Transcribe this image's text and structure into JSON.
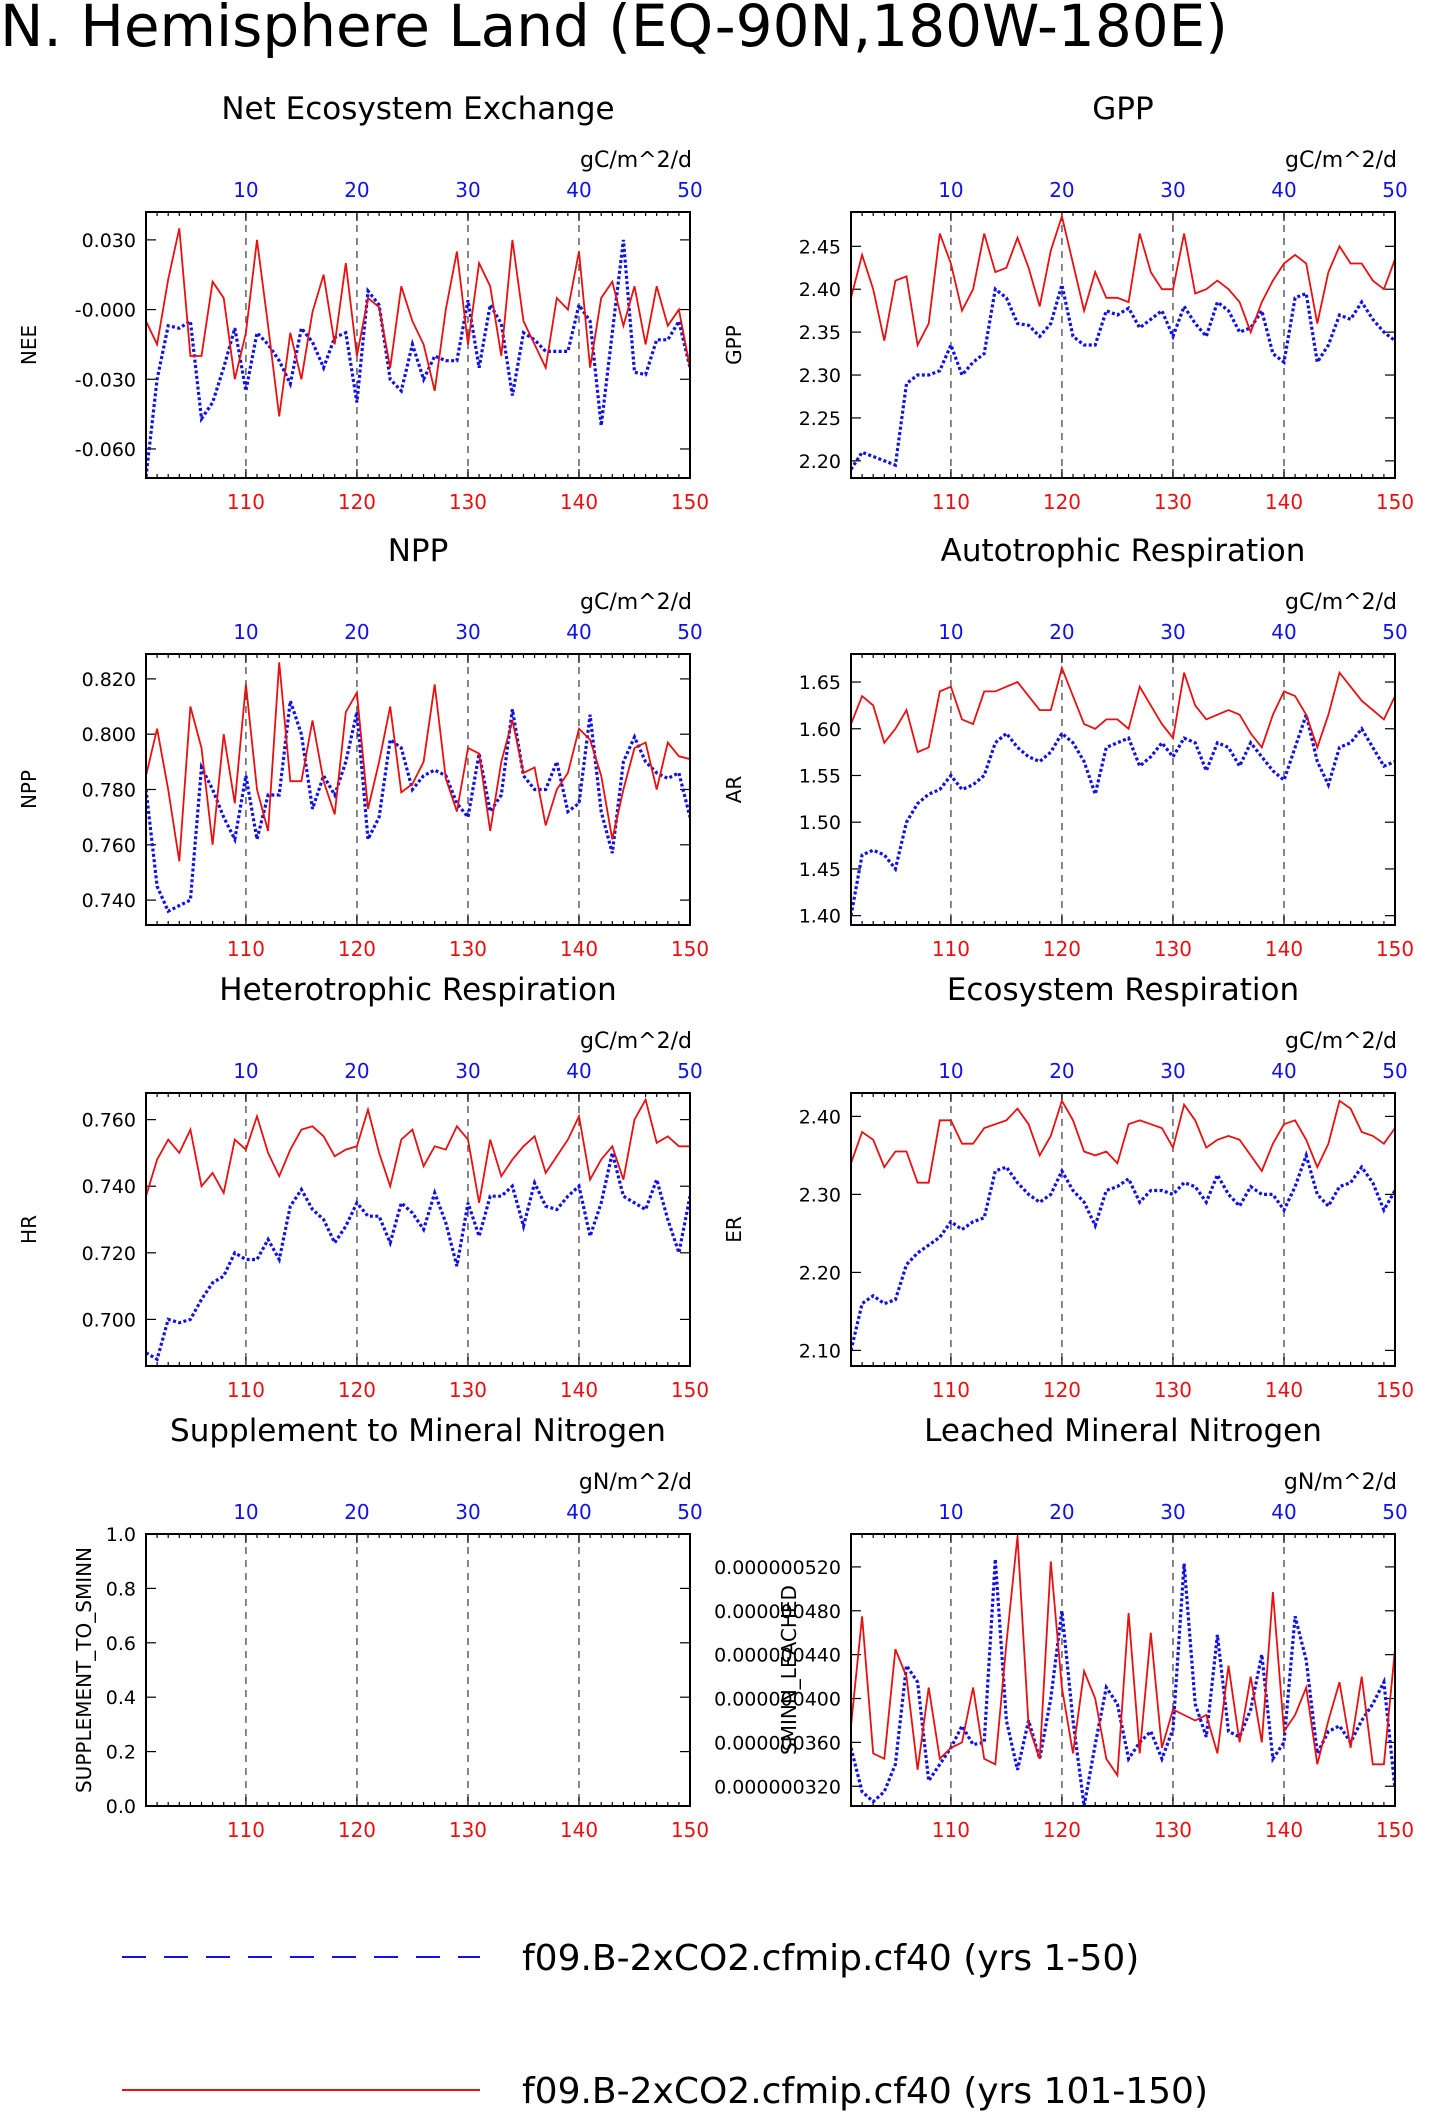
{
  "title": "N. Hemisphere Land (EQ-90N,180W-180E)",
  "bottom_axis": {
    "ticks": [
      110,
      120,
      130,
      140,
      150
    ],
    "color": "#e81010"
  },
  "top_axis": {
    "ticks": [
      10,
      20,
      30,
      40,
      50
    ],
    "color": "#1010e8"
  },
  "legend": [
    {
      "label": "f09.B-2xCO2.cfmip.cf40 (yrs 1-50)",
      "color": "#1010e8",
      "style": "dashed"
    },
    {
      "label": "f09.B-2xCO2.cfmip.cf40 (yrs 101-150)",
      "color": "#e81010",
      "style": "solid"
    }
  ],
  "chart_data": [
    {
      "type": "line",
      "title": "Net Ecosystem Exchange",
      "units": "gC/m^2/d",
      "ylabel": "NEE",
      "ylim": [
        -0.0725,
        0.042
      ],
      "yticks": [
        "0.030",
        "-0.000",
        "-0.030",
        "-0.060"
      ],
      "ytick_values": [
        0.03,
        0.0,
        -0.03,
        -0.06
      ],
      "x_bottom": [
        101,
        150
      ],
      "x_top": [
        1,
        50
      ],
      "series": [
        {
          "color": "#1010e8",
          "style": "dashed",
          "values": [
            -0.072,
            -0.03,
            -0.007,
            -0.008,
            -0.005,
            -0.047,
            -0.04,
            -0.025,
            -0.008,
            -0.035,
            -0.01,
            -0.015,
            -0.022,
            -0.032,
            -0.008,
            -0.014,
            -0.025,
            -0.012,
            -0.01,
            -0.04,
            0.008,
            0.002,
            -0.03,
            -0.035,
            -0.015,
            -0.03,
            -0.02,
            -0.022,
            -0.022,
            0.004,
            -0.025,
            0.002,
            -0.006,
            -0.037,
            -0.01,
            -0.013,
            -0.018,
            -0.018,
            -0.018,
            0.002,
            -0.005,
            -0.05,
            -0.01,
            0.03,
            -0.027,
            -0.028,
            -0.013,
            -0.013,
            -0.005,
            -0.025
          ]
        },
        {
          "color": "#e81010",
          "style": "solid",
          "values": [
            -0.005,
            -0.015,
            0.013,
            0.035,
            -0.02,
            -0.02,
            0.012,
            0.005,
            -0.03,
            -0.01,
            0.03,
            -0.007,
            -0.046,
            -0.01,
            -0.03,
            -0.001,
            0.015,
            -0.015,
            0.02,
            -0.02,
            0.005,
            0.001,
            -0.025,
            0.01,
            -0.005,
            -0.015,
            -0.035,
            0.0,
            0.025,
            -0.015,
            0.02,
            0.01,
            -0.02,
            0.03,
            -0.005,
            -0.015,
            -0.025,
            0.005,
            0.0,
            0.025,
            -0.025,
            0.005,
            0.012,
            -0.007,
            0.01,
            -0.015,
            0.01,
            -0.007,
            0.0,
            -0.025
          ]
        }
      ]
    },
    {
      "type": "line",
      "title": "GPP",
      "units": "gC/m^2/d",
      "ylabel": "GPP",
      "ylim": [
        2.18,
        2.49
      ],
      "yticks": [
        "2.45",
        "2.40",
        "2.35",
        "2.30",
        "2.25",
        "2.20"
      ],
      "ytick_values": [
        2.45,
        2.4,
        2.35,
        2.3,
        2.25,
        2.2
      ],
      "x_bottom": [
        101,
        150
      ],
      "x_top": [
        1,
        50
      ],
      "series": [
        {
          "color": "#1010e8",
          "style": "dashed",
          "values": [
            2.19,
            2.21,
            2.205,
            2.2,
            2.195,
            2.29,
            2.3,
            2.3,
            2.305,
            2.335,
            2.3,
            2.315,
            2.325,
            2.4,
            2.39,
            2.36,
            2.358,
            2.345,
            2.36,
            2.405,
            2.345,
            2.335,
            2.335,
            2.375,
            2.37,
            2.378,
            2.355,
            2.365,
            2.375,
            2.345,
            2.38,
            2.36,
            2.345,
            2.385,
            2.375,
            2.35,
            2.355,
            2.375,
            2.325,
            2.315,
            2.39,
            2.395,
            2.315,
            2.335,
            2.37,
            2.365,
            2.385,
            2.365,
            2.35,
            2.34
          ]
        },
        {
          "color": "#e81010",
          "style": "solid",
          "values": [
            2.39,
            2.44,
            2.4,
            2.34,
            2.41,
            2.415,
            2.335,
            2.36,
            2.465,
            2.43,
            2.375,
            2.4,
            2.465,
            2.42,
            2.425,
            2.46,
            2.425,
            2.38,
            2.445,
            2.485,
            2.43,
            2.375,
            2.42,
            2.39,
            2.39,
            2.385,
            2.465,
            2.42,
            2.4,
            2.4,
            2.465,
            2.395,
            2.4,
            2.41,
            2.4,
            2.385,
            2.35,
            2.385,
            2.41,
            2.43,
            2.44,
            2.43,
            2.36,
            2.42,
            2.45,
            2.43,
            2.43,
            2.41,
            2.4,
            2.435
          ]
        }
      ]
    },
    {
      "type": "line",
      "title": "NPP",
      "units": "gC/m^2/d",
      "ylabel": "NPP",
      "ylim": [
        0.731,
        0.829
      ],
      "yticks": [
        "0.820",
        "0.800",
        "0.780",
        "0.760",
        "0.740"
      ],
      "ytick_values": [
        0.82,
        0.8,
        0.78,
        0.76,
        0.74
      ],
      "x_bottom": [
        101,
        150
      ],
      "x_top": [
        1,
        50
      ],
      "series": [
        {
          "color": "#1010e8",
          "style": "dashed",
          "values": [
            0.78,
            0.745,
            0.736,
            0.738,
            0.74,
            0.788,
            0.78,
            0.77,
            0.762,
            0.785,
            0.762,
            0.778,
            0.778,
            0.812,
            0.8,
            0.773,
            0.785,
            0.778,
            0.79,
            0.808,
            0.762,
            0.77,
            0.798,
            0.795,
            0.78,
            0.785,
            0.787,
            0.785,
            0.775,
            0.77,
            0.793,
            0.772,
            0.778,
            0.809,
            0.785,
            0.78,
            0.78,
            0.79,
            0.772,
            0.775,
            0.807,
            0.772,
            0.757,
            0.79,
            0.799,
            0.79,
            0.786,
            0.784,
            0.786,
            0.77
          ]
        },
        {
          "color": "#e81010",
          "style": "solid",
          "values": [
            0.785,
            0.802,
            0.78,
            0.754,
            0.81,
            0.795,
            0.76,
            0.8,
            0.775,
            0.818,
            0.78,
            0.765,
            0.826,
            0.783,
            0.783,
            0.805,
            0.783,
            0.771,
            0.808,
            0.815,
            0.773,
            0.79,
            0.81,
            0.779,
            0.782,
            0.79,
            0.818,
            0.784,
            0.772,
            0.795,
            0.793,
            0.765,
            0.79,
            0.805,
            0.786,
            0.788,
            0.767,
            0.78,
            0.786,
            0.802,
            0.798,
            0.785,
            0.762,
            0.78,
            0.795,
            0.797,
            0.78,
            0.797,
            0.792,
            0.791
          ]
        }
      ]
    },
    {
      "type": "line",
      "title": "Autotrophic Respiration",
      "units": "gC/m^2/d",
      "ylabel": "AR",
      "ylim": [
        1.39,
        1.68
      ],
      "yticks": [
        "1.65",
        "1.60",
        "1.55",
        "1.50",
        "1.45",
        "1.40"
      ],
      "ytick_values": [
        1.65,
        1.6,
        1.55,
        1.5,
        1.45,
        1.4
      ],
      "x_bottom": [
        101,
        150
      ],
      "x_top": [
        1,
        50
      ],
      "series": [
        {
          "color": "#1010e8",
          "style": "dashed",
          "values": [
            1.4,
            1.465,
            1.47,
            1.465,
            1.45,
            1.5,
            1.52,
            1.53,
            1.535,
            1.55,
            1.535,
            1.54,
            1.55,
            1.585,
            1.595,
            1.58,
            1.57,
            1.565,
            1.575,
            1.595,
            1.585,
            1.565,
            1.53,
            1.58,
            1.585,
            1.59,
            1.56,
            1.57,
            1.585,
            1.57,
            1.59,
            1.585,
            1.555,
            1.585,
            1.58,
            1.56,
            1.585,
            1.57,
            1.555,
            1.545,
            1.58,
            1.615,
            1.565,
            1.54,
            1.58,
            1.585,
            1.6,
            1.58,
            1.56,
            1.565
          ]
        },
        {
          "color": "#e81010",
          "style": "solid",
          "values": [
            1.605,
            1.635,
            1.625,
            1.585,
            1.6,
            1.62,
            1.575,
            1.58,
            1.64,
            1.645,
            1.61,
            1.605,
            1.64,
            1.64,
            1.645,
            1.65,
            1.635,
            1.62,
            1.62,
            1.665,
            1.635,
            1.605,
            1.6,
            1.61,
            1.61,
            1.6,
            1.645,
            1.625,
            1.605,
            1.59,
            1.66,
            1.625,
            1.61,
            1.615,
            1.62,
            1.615,
            1.595,
            1.58,
            1.615,
            1.64,
            1.635,
            1.615,
            1.58,
            1.615,
            1.66,
            1.645,
            1.63,
            1.62,
            1.61,
            1.635
          ]
        }
      ]
    },
    {
      "type": "line",
      "title": "Heterotrophic Respiration",
      "units": "gC/m^2/d",
      "ylabel": "HR",
      "ylim": [
        0.686,
        0.768
      ],
      "yticks": [
        "0.760",
        "0.740",
        "0.720",
        "0.700"
      ],
      "ytick_values": [
        0.76,
        0.74,
        0.72,
        0.7
      ],
      "x_bottom": [
        101,
        150
      ],
      "x_top": [
        1,
        50
      ],
      "series": [
        {
          "color": "#1010e8",
          "style": "dashed",
          "values": [
            0.69,
            0.688,
            0.7,
            0.699,
            0.7,
            0.706,
            0.711,
            0.713,
            0.72,
            0.718,
            0.718,
            0.724,
            0.718,
            0.734,
            0.739,
            0.733,
            0.73,
            0.723,
            0.728,
            0.735,
            0.731,
            0.731,
            0.723,
            0.735,
            0.732,
            0.727,
            0.738,
            0.729,
            0.716,
            0.735,
            0.725,
            0.737,
            0.737,
            0.74,
            0.728,
            0.741,
            0.734,
            0.733,
            0.737,
            0.74,
            0.725,
            0.735,
            0.75,
            0.737,
            0.735,
            0.733,
            0.742,
            0.73,
            0.72,
            0.737
          ]
        },
        {
          "color": "#e81010",
          "style": "solid",
          "values": [
            0.737,
            0.748,
            0.754,
            0.75,
            0.757,
            0.74,
            0.744,
            0.738,
            0.754,
            0.751,
            0.761,
            0.75,
            0.743,
            0.751,
            0.757,
            0.758,
            0.755,
            0.749,
            0.751,
            0.752,
            0.763,
            0.75,
            0.74,
            0.754,
            0.757,
            0.746,
            0.752,
            0.751,
            0.758,
            0.754,
            0.735,
            0.754,
            0.743,
            0.748,
            0.752,
            0.755,
            0.744,
            0.749,
            0.754,
            0.761,
            0.742,
            0.748,
            0.752,
            0.742,
            0.76,
            0.766,
            0.753,
            0.755,
            0.752,
            0.752
          ]
        }
      ]
    },
    {
      "type": "line",
      "title": "Ecosystem Respiration",
      "units": "gC/m^2/d",
      "ylabel": "ER",
      "ylim": [
        2.08,
        2.43
      ],
      "yticks": [
        "2.40",
        "2.30",
        "2.20",
        "2.10"
      ],
      "ytick_values": [
        2.4,
        2.3,
        2.2,
        2.1
      ],
      "x_bottom": [
        101,
        150
      ],
      "x_top": [
        1,
        50
      ],
      "series": [
        {
          "color": "#1010e8",
          "style": "dashed",
          "values": [
            2.1,
            2.16,
            2.17,
            2.16,
            2.165,
            2.21,
            2.225,
            2.235,
            2.245,
            2.265,
            2.255,
            2.265,
            2.27,
            2.33,
            2.335,
            2.315,
            2.3,
            2.29,
            2.3,
            2.33,
            2.305,
            2.29,
            2.26,
            2.305,
            2.31,
            2.32,
            2.29,
            2.305,
            2.305,
            2.3,
            2.315,
            2.31,
            2.29,
            2.325,
            2.3,
            2.285,
            2.31,
            2.3,
            2.3,
            2.28,
            2.31,
            2.35,
            2.3,
            2.285,
            2.31,
            2.315,
            2.335,
            2.315,
            2.28,
            2.305
          ]
        },
        {
          "color": "#e81010",
          "style": "solid",
          "values": [
            2.34,
            2.38,
            2.37,
            2.335,
            2.355,
            2.355,
            2.315,
            2.315,
            2.395,
            2.395,
            2.365,
            2.365,
            2.385,
            2.39,
            2.395,
            2.41,
            2.39,
            2.35,
            2.375,
            2.42,
            2.395,
            2.355,
            2.35,
            2.355,
            2.34,
            2.39,
            2.395,
            2.39,
            2.385,
            2.36,
            2.415,
            2.395,
            2.36,
            2.37,
            2.375,
            2.37,
            2.35,
            2.33,
            2.365,
            2.39,
            2.395,
            2.37,
            2.335,
            2.365,
            2.42,
            2.41,
            2.38,
            2.375,
            2.365,
            2.385
          ]
        }
      ]
    },
    {
      "type": "line",
      "title": "Supplement to Mineral Nitrogen",
      "units": "gN/m^2/d",
      "ylabel": "SUPPLEMENT_TO_SMINN",
      "ylim": [
        0.0,
        1.0
      ],
      "yticks": [
        "1.0",
        "0.8",
        "0.6",
        "0.4",
        "0.2",
        "0.0"
      ],
      "ytick_values": [
        1.0,
        0.8,
        0.6,
        0.4,
        0.2,
        0.0
      ],
      "x_bottom": [
        101,
        150
      ],
      "x_top": [
        1,
        50
      ],
      "series": []
    },
    {
      "type": "line",
      "title": "Leached Mineral Nitrogen",
      "units": "gN/m^2/d",
      "ylabel": "SMINN_LEACHED",
      "ylim": [
        3.02e-07,
        5.5e-07
      ],
      "yticks": [
        "0.000000520",
        "0.000000480",
        "0.000000440",
        "0.000000400",
        "0.000000360",
        "0.000000320"
      ],
      "ytick_values": [
        5.2e-07,
        4.8e-07,
        4.4e-07,
        4e-07,
        3.6e-07,
        3.2e-07
      ],
      "x_bottom": [
        101,
        150
      ],
      "x_top": [
        1,
        50
      ],
      "series": [
        {
          "color": "#1010e8",
          "style": "dashed",
          "values": [
            3.55e-07,
            3.15e-07,
            3.06e-07,
            3.15e-07,
            3.4e-07,
            4.3e-07,
            4.15e-07,
            3.25e-07,
            3.4e-07,
            3.55e-07,
            3.75e-07,
            3.58e-07,
            3.6e-07,
            5.27e-07,
            3.8e-07,
            3.35e-07,
            3.8e-07,
            3.45e-07,
            4e-07,
            4.8e-07,
            3.8e-07,
            3.02e-07,
            3.58e-07,
            4.1e-07,
            3.95e-07,
            3.45e-07,
            3.6e-07,
            3.7e-07,
            3.45e-07,
            3.72e-07,
            5.23e-07,
            3.95e-07,
            3.65e-07,
            4.58e-07,
            3.7e-07,
            3.65e-07,
            3.9e-07,
            4.4e-07,
            3.45e-07,
            3.6e-07,
            4.75e-07,
            4.35e-07,
            3.5e-07,
            3.7e-07,
            3.75e-07,
            3.6e-07,
            3.8e-07,
            3.95e-07,
            4.15e-07,
            3.18e-07
          ]
        },
        {
          "color": "#e81010",
          "style": "solid",
          "values": [
            3.75e-07,
            4.75e-07,
            3.5e-07,
            3.45e-07,
            4.45e-07,
            4.2e-07,
            3.35e-07,
            4.1e-07,
            3.45e-07,
            3.55e-07,
            3.6e-07,
            4.1e-07,
            3.45e-07,
            3.4e-07,
            4.5e-07,
            5.48e-07,
            3.75e-07,
            3.45e-07,
            5.25e-07,
            4.1e-07,
            3.5e-07,
            4.25e-07,
            4e-07,
            3.45e-07,
            3.3e-07,
            4.78e-07,
            3.5e-07,
            4.6e-07,
            3.55e-07,
            3.9e-07,
            3.85e-07,
            3.8e-07,
            3.85e-07,
            3.5e-07,
            4.3e-07,
            3.6e-07,
            4.2e-07,
            3.6e-07,
            4.97e-07,
            3.7e-07,
            3.85e-07,
            4.1e-07,
            3.4e-07,
            3.8e-07,
            4.15e-07,
            3.55e-07,
            4.2e-07,
            3.4e-07,
            3.4e-07,
            4.45e-07
          ]
        }
      ]
    }
  ]
}
